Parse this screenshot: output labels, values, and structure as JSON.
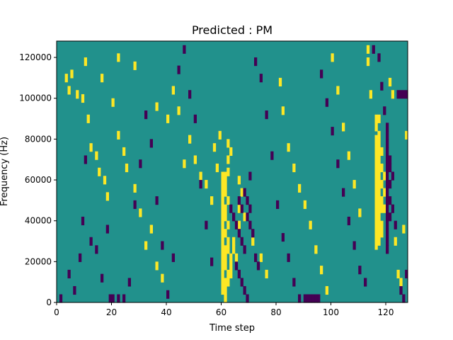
{
  "chart_data": {
    "type": "heatmap",
    "title": "Predicted : PM",
    "xlabel": "Time step",
    "ylabel": "Frequency (Hz)",
    "xlim": [
      0,
      128
    ],
    "ylim": [
      0,
      128000
    ],
    "x_ticks": [
      0,
      20,
      40,
      60,
      80,
      100,
      120
    ],
    "x_tick_labels": [
      "0",
      "20",
      "40",
      "60",
      "80",
      "100",
      "120"
    ],
    "y_ticks": [
      0,
      20000,
      40000,
      60000,
      80000,
      100000,
      120000
    ],
    "y_tick_labels": [
      "0",
      "20000",
      "40000",
      "60000",
      "80000",
      "100000",
      "120000"
    ],
    "colormap": "viridis",
    "colors": {
      "background": "#21918c",
      "high": "#fde725",
      "low": "#440154"
    },
    "grid": false,
    "description_of_values": "Mostly mid-level (teal) background with scattered binary events: high (yellow) and low (purple). Dense activity near time steps 58-70 and 114-128.",
    "cells": {
      "high": [
        [
          3,
          110000
        ],
        [
          4,
          104000
        ],
        [
          5,
          112000
        ],
        [
          7,
          102000
        ],
        [
          9,
          100000
        ],
        [
          11,
          90000
        ],
        [
          12,
          76000
        ],
        [
          14,
          72000
        ],
        [
          15,
          64000
        ],
        [
          17,
          60000
        ],
        [
          18,
          52000
        ],
        [
          20,
          98000
        ],
        [
          22,
          82000
        ],
        [
          24,
          74000
        ],
        [
          25,
          66000
        ],
        [
          28,
          56000
        ],
        [
          30,
          44000
        ],
        [
          32,
          28000
        ],
        [
          34,
          36000
        ],
        [
          36,
          18000
        ],
        [
          38,
          12000
        ],
        [
          10,
          118000
        ],
        [
          16,
          110000
        ],
        [
          22,
          120000
        ],
        [
          28,
          116000
        ],
        [
          36,
          96000
        ],
        [
          40,
          90000
        ],
        [
          42,
          104000
        ],
        [
          44,
          94000
        ],
        [
          46,
          68000
        ],
        [
          48,
          80000
        ],
        [
          50,
          70000
        ],
        [
          52,
          62000
        ],
        [
          54,
          58000
        ],
        [
          56,
          50000
        ],
        [
          57,
          76000
        ],
        [
          58,
          66000
        ],
        [
          60,
          62000
        ],
        [
          60,
          58000
        ],
        [
          60,
          54000
        ],
        [
          60,
          50000
        ],
        [
          60,
          46000
        ],
        [
          60,
          42000
        ],
        [
          60,
          38000
        ],
        [
          60,
          34000
        ],
        [
          60,
          30000
        ],
        [
          60,
          26000
        ],
        [
          60,
          22000
        ],
        [
          60,
          18000
        ],
        [
          60,
          14000
        ],
        [
          60,
          10000
        ],
        [
          60,
          6000
        ],
        [
          61,
          62000
        ],
        [
          61,
          58000
        ],
        [
          61,
          54000
        ],
        [
          61,
          46000
        ],
        [
          61,
          42000
        ],
        [
          61,
          34000
        ],
        [
          61,
          26000
        ],
        [
          61,
          22000
        ],
        [
          61,
          18000
        ],
        [
          61,
          10000
        ],
        [
          61,
          6000
        ],
        [
          61,
          2000
        ],
        [
          62,
          78000
        ],
        [
          62,
          70000
        ],
        [
          62,
          64000
        ],
        [
          62,
          50000
        ],
        [
          62,
          38000
        ],
        [
          62,
          30000
        ],
        [
          62,
          26000
        ],
        [
          62,
          14000
        ],
        [
          62,
          10000
        ],
        [
          63,
          22000
        ],
        [
          63,
          18000
        ],
        [
          63,
          14000
        ],
        [
          64,
          30000
        ],
        [
          64,
          26000
        ],
        [
          65,
          22000
        ],
        [
          66,
          46000
        ],
        [
          66,
          38000
        ],
        [
          67,
          54000
        ],
        [
          59,
          82000
        ],
        [
          63,
          74000
        ],
        [
          66,
          60000
        ],
        [
          68,
          42000
        ],
        [
          71,
          30000
        ],
        [
          74,
          22000
        ],
        [
          76,
          14000
        ],
        [
          81,
          108000
        ],
        [
          82,
          94000
        ],
        [
          84,
          76000
        ],
        [
          86,
          66000
        ],
        [
          88,
          56000
        ],
        [
          90,
          48000
        ],
        [
          92,
          38000
        ],
        [
          94,
          26000
        ],
        [
          96,
          16000
        ],
        [
          98,
          6000
        ],
        [
          100,
          120000
        ],
        [
          102,
          104000
        ],
        [
          104,
          86000
        ],
        [
          106,
          72000
        ],
        [
          108,
          58000
        ],
        [
          110,
          44000
        ],
        [
          113,
          124000
        ],
        [
          113,
          118000
        ],
        [
          114,
          102000
        ],
        [
          116,
          90000
        ],
        [
          116,
          86000
        ],
        [
          116,
          80000
        ],
        [
          116,
          76000
        ],
        [
          116,
          72000
        ],
        [
          116,
          68000
        ],
        [
          116,
          64000
        ],
        [
          116,
          60000
        ],
        [
          116,
          56000
        ],
        [
          116,
          52000
        ],
        [
          116,
          48000
        ],
        [
          116,
          44000
        ],
        [
          116,
          40000
        ],
        [
          116,
          36000
        ],
        [
          116,
          32000
        ],
        [
          116,
          28000
        ],
        [
          117,
          90000
        ],
        [
          117,
          82000
        ],
        [
          117,
          78000
        ],
        [
          117,
          74000
        ],
        [
          117,
          70000
        ],
        [
          117,
          66000
        ],
        [
          117,
          62000
        ],
        [
          117,
          58000
        ],
        [
          117,
          54000
        ],
        [
          117,
          50000
        ],
        [
          117,
          46000
        ],
        [
          117,
          42000
        ],
        [
          117,
          38000
        ],
        [
          117,
          34000
        ],
        [
          117,
          30000
        ],
        [
          118,
          74000
        ],
        [
          118,
          66000
        ],
        [
          118,
          58000
        ],
        [
          118,
          50000
        ],
        [
          118,
          46000
        ],
        [
          118,
          38000
        ],
        [
          118,
          34000
        ],
        [
          119,
          62000
        ],
        [
          119,
          54000
        ],
        [
          119,
          46000
        ],
        [
          120,
          42000
        ],
        [
          121,
          108000
        ],
        [
          122,
          102000
        ],
        [
          123,
          30000
        ],
        [
          124,
          14000
        ],
        [
          125,
          10000
        ],
        [
          126,
          36000
        ],
        [
          127,
          82000
        ]
      ],
      "low": [
        [
          1,
          2000
        ],
        [
          4,
          14000
        ],
        [
          6,
          6000
        ],
        [
          8,
          22000
        ],
        [
          9,
          40000
        ],
        [
          10,
          70000
        ],
        [
          12,
          30000
        ],
        [
          14,
          26000
        ],
        [
          16,
          12000
        ],
        [
          18,
          36000
        ],
        [
          19,
          2000
        ],
        [
          20,
          2000
        ],
        [
          22,
          2000
        ],
        [
          24,
          2000
        ],
        [
          26,
          10000
        ],
        [
          28,
          48000
        ],
        [
          30,
          68000
        ],
        [
          32,
          92000
        ],
        [
          34,
          78000
        ],
        [
          36,
          50000
        ],
        [
          38,
          28000
        ],
        [
          40,
          4000
        ],
        [
          42,
          22000
        ],
        [
          44,
          114000
        ],
        [
          46,
          124000
        ],
        [
          48,
          102000
        ],
        [
          50,
          90000
        ],
        [
          52,
          58000
        ],
        [
          54,
          38000
        ],
        [
          56,
          20000
        ],
        [
          63,
          46000
        ],
        [
          64,
          42000
        ],
        [
          65,
          38000
        ],
        [
          66,
          34000
        ],
        [
          67,
          30000
        ],
        [
          68,
          26000
        ],
        [
          69,
          42000
        ],
        [
          70,
          38000
        ],
        [
          71,
          34000
        ],
        [
          72,
          22000
        ],
        [
          73,
          18000
        ],
        [
          66,
          50000
        ],
        [
          67,
          46000
        ],
        [
          68,
          54000
        ],
        [
          69,
          50000
        ],
        [
          70,
          46000
        ],
        [
          65,
          18000
        ],
        [
          66,
          14000
        ],
        [
          67,
          10000
        ],
        [
          68,
          6000
        ],
        [
          69,
          2000
        ],
        [
          70,
          62000
        ],
        [
          72,
          118000
        ],
        [
          74,
          110000
        ],
        [
          76,
          92000
        ],
        [
          78,
          72000
        ],
        [
          80,
          48000
        ],
        [
          82,
          32000
        ],
        [
          84,
          22000
        ],
        [
          86,
          10000
        ],
        [
          88,
          2000
        ],
        [
          90,
          2000
        ],
        [
          91,
          2000
        ],
        [
          92,
          2000
        ],
        [
          93,
          2000
        ],
        [
          94,
          2000
        ],
        [
          95,
          2000
        ],
        [
          96,
          112000
        ],
        [
          98,
          98000
        ],
        [
          100,
          84000
        ],
        [
          102,
          68000
        ],
        [
          104,
          54000
        ],
        [
          106,
          40000
        ],
        [
          108,
          28000
        ],
        [
          110,
          16000
        ],
        [
          112,
          10000
        ],
        [
          115,
          124000
        ],
        [
          117,
          120000
        ],
        [
          118,
          106000
        ],
        [
          119,
          94000
        ],
        [
          120,
          86000
        ],
        [
          120,
          82000
        ],
        [
          120,
          78000
        ],
        [
          120,
          74000
        ],
        [
          120,
          70000
        ],
        [
          120,
          66000
        ],
        [
          120,
          62000
        ],
        [
          120,
          58000
        ],
        [
          120,
          54000
        ],
        [
          120,
          50000
        ],
        [
          120,
          46000
        ],
        [
          120,
          42000
        ],
        [
          120,
          38000
        ],
        [
          120,
          34000
        ],
        [
          120,
          30000
        ],
        [
          120,
          26000
        ],
        [
          121,
          70000
        ],
        [
          121,
          66000
        ],
        [
          121,
          58000
        ],
        [
          121,
          50000
        ],
        [
          121,
          42000
        ],
        [
          122,
          62000
        ],
        [
          122,
          46000
        ],
        [
          123,
          38000
        ],
        [
          124,
          102000
        ],
        [
          125,
          102000
        ],
        [
          126,
          102000
        ],
        [
          127,
          102000
        ],
        [
          125,
          6000
        ],
        [
          126,
          2000
        ],
        [
          127,
          14000
        ]
      ]
    }
  }
}
